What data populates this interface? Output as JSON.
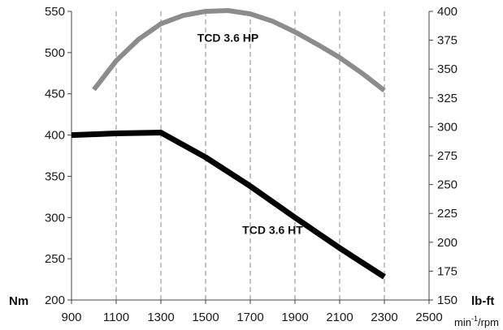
{
  "chart_data": {
    "type": "line",
    "x": [
      900,
      1100,
      1300,
      1500,
      1700,
      1900,
      2100,
      2300,
      2500
    ],
    "xlim": [
      900,
      2500
    ],
    "ylim": [
      200,
      550
    ],
    "y2lim": [
      150,
      400
    ],
    "x_ticks": [
      "900",
      "1100",
      "1300",
      "1500",
      "1700",
      "1900",
      "2100",
      "2300",
      "2500"
    ],
    "y_ticks": [
      "200",
      "250",
      "300",
      "350",
      "400",
      "450",
      "500",
      "550"
    ],
    "y2_ticks": [
      "150",
      "175",
      "200",
      "225",
      "250",
      "275",
      "300",
      "325",
      "350",
      "375",
      "400"
    ],
    "ylabel": "Nm",
    "y2label": "lb-ft",
    "xlabel_main": "min",
    "xlabel_sup": "-1",
    "xlabel_rest": "/rpm",
    "grid": "vertical dashed",
    "series": [
      {
        "name": "TCD 3.6 HP",
        "color": "#8c8c8c",
        "points": [
          [
            1000,
            455
          ],
          [
            1100,
            490
          ],
          [
            1200,
            516
          ],
          [
            1300,
            535
          ],
          [
            1400,
            545
          ],
          [
            1500,
            550
          ],
          [
            1600,
            551
          ],
          [
            1700,
            547
          ],
          [
            1800,
            538
          ],
          [
            1900,
            525
          ],
          [
            2000,
            510
          ],
          [
            2100,
            494
          ],
          [
            2200,
            475
          ],
          [
            2300,
            454
          ]
        ]
      },
      {
        "name": "TCD 3.6 HT",
        "color": "#000000",
        "points": [
          [
            900,
            400
          ],
          [
            1100,
            402
          ],
          [
            1300,
            403
          ],
          [
            1500,
            373
          ],
          [
            1700,
            338
          ],
          [
            1900,
            300
          ],
          [
            2100,
            263
          ],
          [
            2300,
            228
          ]
        ]
      }
    ]
  }
}
